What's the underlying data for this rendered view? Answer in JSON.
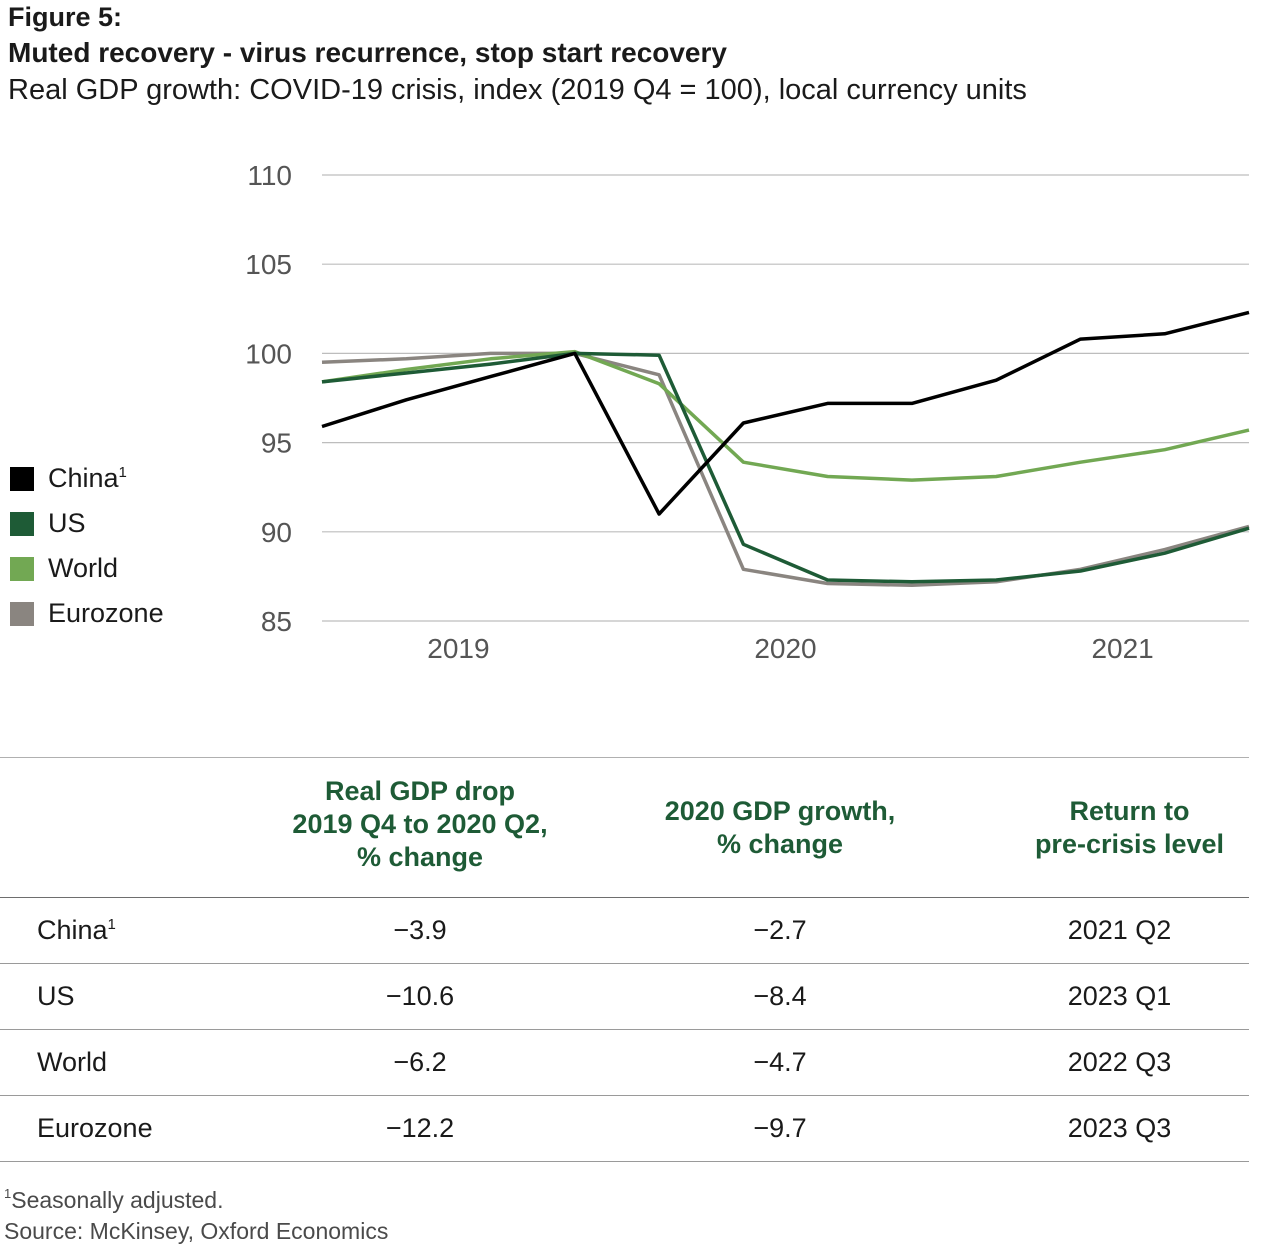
{
  "header": {
    "figure_label": "Figure 5:",
    "title": "Muted recovery - virus recurrence, stop start recovery",
    "subtitle": "Real GDP growth: COVID-19 crisis,  index (2019 Q4 = 100), local currency units"
  },
  "chart_data": {
    "type": "line",
    "x": [
      "2019 Q1",
      "2019 Q2",
      "2019 Q3",
      "2019 Q4",
      "2020 Q1",
      "2020 Q2",
      "2020 Q3",
      "2020 Q4",
      "2021 Q1",
      "2021 Q2",
      "2021 Q3",
      "2021 Q4"
    ],
    "x_tick_labels": [
      "2019",
      "2020",
      "2021"
    ],
    "y_ticks": [
      110,
      105,
      100,
      95,
      90,
      85
    ],
    "ylim": [
      85,
      110
    ],
    "grid": true,
    "legend_position": "left",
    "series": [
      {
        "name": "China",
        "footnote": "1",
        "color": "#000000",
        "values": [
          95.9,
          97.4,
          98.7,
          100.0,
          91.0,
          96.1,
          97.2,
          97.2,
          98.5,
          100.8,
          101.1,
          102.3
        ]
      },
      {
        "name": "US",
        "color": "#1e5b36",
        "values": [
          98.4,
          98.9,
          99.4,
          100.0,
          99.9,
          89.3,
          87.3,
          87.2,
          87.3,
          87.8,
          88.8,
          90.2
        ]
      },
      {
        "name": "World",
        "color": "#72a853",
        "values": [
          98.4,
          99.1,
          99.7,
          100.1,
          98.3,
          93.9,
          93.1,
          92.9,
          93.1,
          93.9,
          94.6,
          95.7
        ]
      },
      {
        "name": "Eurozone",
        "color": "#8a8580",
        "values": [
          99.5,
          99.7,
          100.0,
          100.0,
          98.8,
          87.9,
          87.1,
          87.0,
          87.2,
          87.9,
          89.0,
          90.3
        ]
      }
    ]
  },
  "table": {
    "headers": [
      "",
      "Real GDP drop\n2019 Q4 to 2020 Q2,\n% change",
      "2020 GDP growth,\n% change",
      "Return to\npre-crisis level"
    ],
    "rows": [
      {
        "name": "China",
        "footnote": "1",
        "drop": "−3.9",
        "growth": "−2.7",
        "return": "2021 Q2"
      },
      {
        "name": "US",
        "drop": "−10.6",
        "growth": "−8.4",
        "return": "2023 Q1"
      },
      {
        "name": "World",
        "drop": "−6.2",
        "growth": "−4.7",
        "return": "2022 Q3"
      },
      {
        "name": "Eurozone",
        "drop": "−12.2",
        "growth": "−9.7",
        "return": "2023 Q3"
      }
    ]
  },
  "footer": {
    "footnote_marker": "1",
    "footnote_text": "Seasonally adjusted.",
    "source": "Source: McKinsey, Oxford Economics"
  }
}
